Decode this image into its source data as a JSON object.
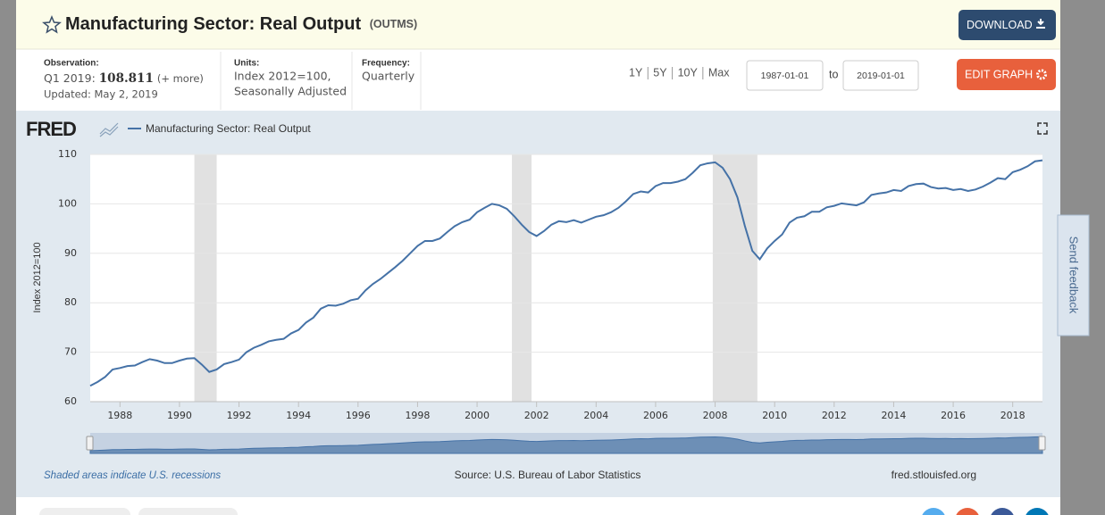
{
  "header": {
    "title": "Manufacturing Sector: Real Output",
    "series_id": "(OUTMS)",
    "download": "DOWNLOAD"
  },
  "info": {
    "observation_label": "Observation:",
    "observation_period": "Q1 2019:",
    "observation_value": "108.811",
    "more": "(+ more)",
    "updated": "Updated: May 2, 2019",
    "units_label": "Units:",
    "units": [
      "Index 2012=100,",
      "Seasonally Adjusted"
    ],
    "frequency_label": "Frequency:",
    "frequency": "Quarterly"
  },
  "controls": {
    "ranges": [
      "1Y",
      "5Y",
      "10Y",
      "Max"
    ],
    "start": "1987-01-01",
    "to": "to",
    "end": "2019-01-01",
    "edit": "EDIT GRAPH"
  },
  "chart_data": {
    "type": "line",
    "logo": "FRED",
    "ylabel": "Index 2012=100",
    "xlim": [
      1987,
      2019
    ],
    "xticks": [
      1988,
      1990,
      1992,
      1994,
      1996,
      1998,
      2000,
      2002,
      2004,
      2006,
      2008,
      2010,
      2012,
      2014,
      2016,
      2018
    ],
    "ylim": [
      60,
      110
    ],
    "yticks": [
      60,
      70,
      80,
      90,
      100,
      110
    ],
    "grid": true,
    "recessions": [
      [
        1990.5,
        1991.25
      ],
      [
        2001.17,
        2001.83
      ],
      [
        2007.92,
        2009.42
      ]
    ],
    "recession_color": "#e1e1e1",
    "x": [
      1987,
      1987.25,
      1987.5,
      1987.75,
      1988,
      1988.25,
      1988.5,
      1988.75,
      1989,
      1989.25,
      1989.5,
      1989.75,
      1990,
      1990.25,
      1990.5,
      1990.75,
      1991,
      1991.25,
      1991.5,
      1991.75,
      1992,
      1992.25,
      1992.5,
      1992.75,
      1993,
      1993.25,
      1993.5,
      1993.75,
      1994,
      1994.25,
      1994.5,
      1994.75,
      1995,
      1995.25,
      1995.5,
      1995.75,
      1996,
      1996.25,
      1996.5,
      1996.75,
      1997,
      1997.25,
      1997.5,
      1997.75,
      1998,
      1998.25,
      1998.5,
      1998.75,
      1999,
      1999.25,
      1999.5,
      1999.75,
      2000,
      2000.25,
      2000.5,
      2000.75,
      2001,
      2001.25,
      2001.5,
      2001.75,
      2002,
      2002.25,
      2002.5,
      2002.75,
      2003,
      2003.25,
      2003.5,
      2003.75,
      2004,
      2004.25,
      2004.5,
      2004.75,
      2005,
      2005.25,
      2005.5,
      2005.75,
      2006,
      2006.25,
      2006.5,
      2006.75,
      2007,
      2007.25,
      2007.5,
      2007.75,
      2008,
      2008.25,
      2008.5,
      2008.75,
      2009,
      2009.25,
      2009.5,
      2009.75,
      2010,
      2010.25,
      2010.5,
      2010.75,
      2011,
      2011.25,
      2011.5,
      2011.75,
      2012,
      2012.25,
      2012.5,
      2012.75,
      2013,
      2013.25,
      2013.5,
      2013.75,
      2014,
      2014.25,
      2014.5,
      2014.75,
      2015,
      2015.25,
      2015.5,
      2015.75,
      2016,
      2016.25,
      2016.5,
      2016.75,
      2017,
      2017.25,
      2017.5,
      2017.75,
      2018,
      2018.25,
      2018.5,
      2018.75,
      2019
    ],
    "series": [
      {
        "name": "Manufacturing Sector: Real Output",
        "color": "#4572a7",
        "values": [
          63.2,
          64.0,
          65.0,
          66.5,
          66.8,
          67.2,
          67.3,
          68.0,
          68.6,
          68.3,
          67.8,
          67.8,
          68.3,
          68.7,
          68.8,
          67.5,
          66.0,
          66.5,
          67.6,
          68.0,
          68.5,
          70.0,
          70.9,
          71.5,
          72.2,
          72.5,
          72.7,
          73.8,
          74.5,
          76.0,
          77.0,
          78.8,
          79.5,
          79.4,
          79.8,
          80.5,
          80.8,
          82.5,
          83.8,
          84.8,
          86.0,
          87.2,
          88.5,
          90.0,
          91.5,
          92.5,
          92.5,
          93.0,
          94.3,
          95.5,
          96.3,
          96.8,
          98.3,
          99.2,
          100.0,
          99.7,
          99.0,
          97.5,
          95.8,
          94.3,
          93.5,
          94.5,
          95.8,
          96.5,
          96.3,
          96.7,
          96.2,
          96.8,
          97.4,
          97.7,
          98.3,
          99.2,
          100.5,
          102.0,
          102.5,
          102.3,
          103.6,
          104.2,
          104.2,
          104.5,
          105.0,
          106.3,
          107.8,
          108.2,
          108.4,
          107.3,
          105.0,
          101.3,
          95.5,
          90.5,
          88.8,
          91.0,
          92.5,
          93.8,
          96.2,
          97.2,
          97.5,
          98.4,
          98.4,
          99.3,
          99.6,
          100.1,
          99.9,
          99.7,
          100.3,
          101.8,
          102.1,
          102.3,
          102.8,
          102.6,
          103.6,
          104.0,
          104.1,
          103.4,
          103.1,
          103.2,
          102.8,
          103.0,
          102.6,
          102.9,
          103.5,
          104.3,
          105.2,
          105.0,
          106.4,
          106.9,
          107.6,
          108.6,
          108.811
        ]
      }
    ],
    "note": "Shaded areas indicate U.S. recessions",
    "source": "Source: U.S. Bureau of Labor Statistics",
    "url": "fred.stlouisfed.org"
  },
  "feedback": "Send feedback"
}
